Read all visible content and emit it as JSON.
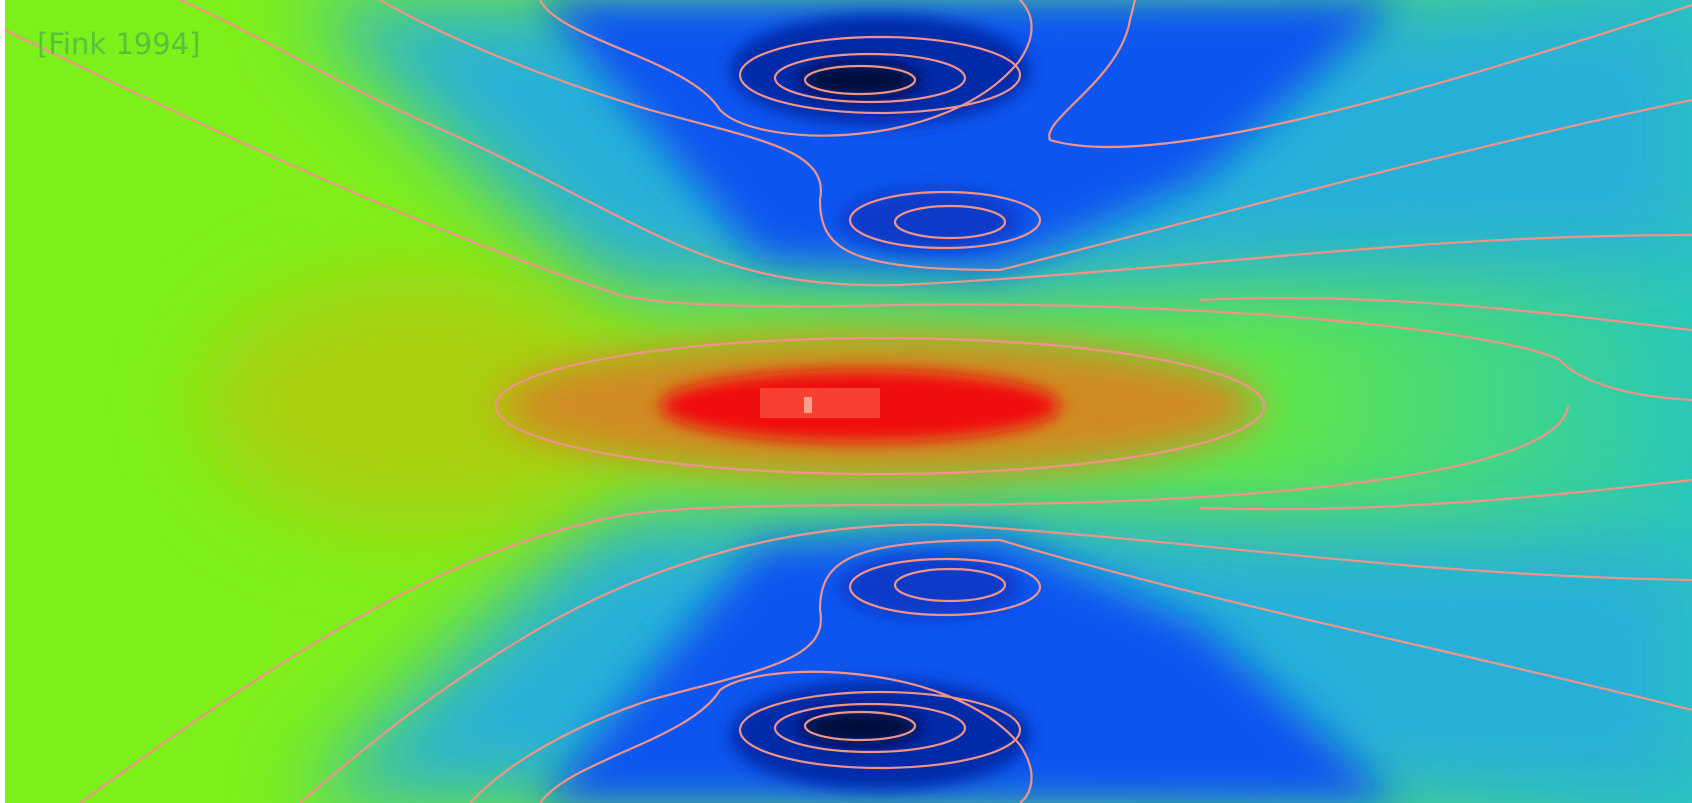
{
  "label": "[Fink 1994]"
}
